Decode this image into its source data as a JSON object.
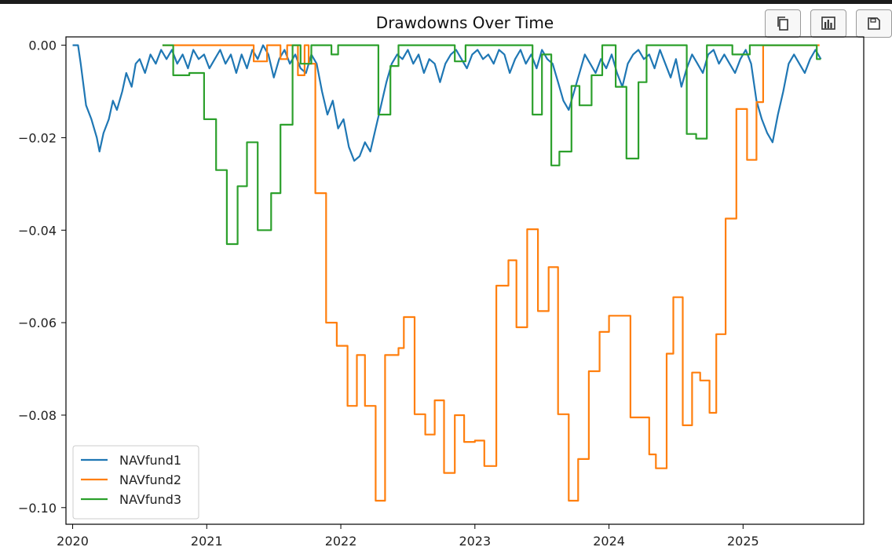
{
  "toolbar": {
    "buttons": [
      {
        "name": "copy-button",
        "icon": "copy-icon"
      },
      {
        "name": "chart-button",
        "icon": "bar-chart-icon"
      },
      {
        "name": "save-button",
        "icon": "save-icon"
      }
    ]
  },
  "chart_data": {
    "type": "line",
    "title": "Drawdowns Over Time",
    "xlabel": "",
    "ylabel": "",
    "xlim": [
      2019.95,
      2025.9
    ],
    "ylim": [
      -0.1036,
      0.0018
    ],
    "x_ticks": [
      2020,
      2021,
      2022,
      2023,
      2024,
      2025
    ],
    "x_tick_labels": [
      "2020",
      "2021",
      "2022",
      "2023",
      "2024",
      "2025"
    ],
    "y_ticks": [
      0.0,
      -0.02,
      -0.04,
      -0.06,
      -0.08,
      -0.1
    ],
    "y_tick_labels": [
      "0.00",
      "−0.02",
      "−0.04",
      "−0.06",
      "−0.08",
      "−0.10"
    ],
    "legend_position": "lower-left",
    "grid": false,
    "series": [
      {
        "name": "NAVfund1",
        "color": "#1f77b4",
        "style": "line",
        "x": [
          2020.0,
          2020.04,
          2020.06,
          2020.1,
          2020.14,
          2020.18,
          2020.2,
          2020.23,
          2020.27,
          2020.3,
          2020.33,
          2020.37,
          2020.4,
          2020.44,
          2020.47,
          2020.5,
          2020.54,
          2020.58,
          2020.62,
          2020.66,
          2020.7,
          2020.74,
          2020.78,
          2020.82,
          2020.86,
          2020.9,
          2020.94,
          2020.98,
          2021.02,
          2021.06,
          2021.1,
          2021.14,
          2021.18,
          2021.22,
          2021.26,
          2021.3,
          2021.34,
          2021.38,
          2021.42,
          2021.46,
          2021.5,
          2021.54,
          2021.58,
          2021.62,
          2021.66,
          2021.7,
          2021.74,
          2021.78,
          2021.82,
          2021.86,
          2021.9,
          2021.94,
          2021.98,
          2022.02,
          2022.06,
          2022.1,
          2022.14,
          2022.18,
          2022.22,
          2022.26,
          2022.3,
          2022.34,
          2022.38,
          2022.42,
          2022.46,
          2022.5,
          2022.54,
          2022.58,
          2022.62,
          2022.66,
          2022.7,
          2022.74,
          2022.78,
          2022.82,
          2022.86,
          2022.9,
          2022.94,
          2022.98,
          2023.02,
          2023.06,
          2023.1,
          2023.14,
          2023.18,
          2023.22,
          2023.26,
          2023.3,
          2023.34,
          2023.38,
          2023.42,
          2023.46,
          2023.5,
          2023.54,
          2023.58,
          2023.62,
          2023.66,
          2023.7,
          2023.74,
          2023.78,
          2023.82,
          2023.86,
          2023.9,
          2023.94,
          2023.98,
          2024.02,
          2024.06,
          2024.1,
          2024.14,
          2024.18,
          2024.22,
          2024.26,
          2024.3,
          2024.34,
          2024.38,
          2024.42,
          2024.46,
          2024.5,
          2024.54,
          2024.58,
          2024.62,
          2024.66,
          2024.7,
          2024.74,
          2024.78,
          2024.82,
          2024.86,
          2024.9,
          2024.94,
          2024.98,
          2025.02,
          2025.06,
          2025.1,
          2025.14,
          2025.18,
          2025.22,
          2025.26,
          2025.3,
          2025.34,
          2025.38,
          2025.42,
          2025.46,
          2025.5,
          2025.54,
          2025.58
        ],
        "y": [
          0.0,
          0.0,
          -0.004,
          -0.013,
          -0.016,
          -0.02,
          -0.023,
          -0.019,
          -0.016,
          -0.012,
          -0.014,
          -0.01,
          -0.006,
          -0.009,
          -0.004,
          -0.003,
          -0.006,
          -0.002,
          -0.004,
          -0.001,
          -0.003,
          -0.001,
          -0.004,
          -0.002,
          -0.005,
          -0.001,
          -0.003,
          -0.002,
          -0.005,
          -0.003,
          -0.001,
          -0.004,
          -0.002,
          -0.006,
          -0.002,
          -0.005,
          -0.001,
          -0.003,
          -0.0,
          -0.002,
          -0.007,
          -0.003,
          -0.001,
          -0.004,
          -0.002,
          -0.005,
          -0.006,
          -0.002,
          -0.004,
          -0.01,
          -0.015,
          -0.012,
          -0.018,
          -0.016,
          -0.022,
          -0.025,
          -0.024,
          -0.021,
          -0.023,
          -0.018,
          -0.013,
          -0.008,
          -0.004,
          -0.002,
          -0.003,
          -0.001,
          -0.004,
          -0.002,
          -0.006,
          -0.003,
          -0.004,
          -0.008,
          -0.004,
          -0.002,
          -0.001,
          -0.003,
          -0.005,
          -0.002,
          -0.001,
          -0.003,
          -0.002,
          -0.004,
          -0.001,
          -0.002,
          -0.006,
          -0.003,
          -0.001,
          -0.004,
          -0.002,
          -0.005,
          -0.001,
          -0.003,
          -0.004,
          -0.008,
          -0.012,
          -0.014,
          -0.01,
          -0.006,
          -0.002,
          -0.004,
          -0.006,
          -0.003,
          -0.005,
          -0.002,
          -0.006,
          -0.009,
          -0.004,
          -0.002,
          -0.001,
          -0.003,
          -0.002,
          -0.005,
          -0.001,
          -0.004,
          -0.007,
          -0.003,
          -0.009,
          -0.005,
          -0.002,
          -0.004,
          -0.006,
          -0.002,
          -0.001,
          -0.004,
          -0.002,
          -0.004,
          -0.006,
          -0.003,
          -0.001,
          -0.004,
          -0.012,
          -0.016,
          -0.019,
          -0.021,
          -0.015,
          -0.01,
          -0.004,
          -0.002,
          -0.004,
          -0.006,
          -0.003,
          -0.001,
          -0.003
        ]
      },
      {
        "name": "NAVfund2",
        "color": "#ff7f0e",
        "style": "step",
        "x": [
          2020.67,
          2021.0,
          2021.25,
          2021.35,
          2021.45,
          2021.55,
          2021.6,
          2021.68,
          2021.73,
          2021.76,
          2021.81,
          2021.89,
          2021.97,
          2022.05,
          2022.12,
          2022.18,
          2022.26,
          2022.33,
          2022.43,
          2022.47,
          2022.55,
          2022.63,
          2022.7,
          2022.77,
          2022.85,
          2022.92,
          2023.0,
          2023.07,
          2023.16,
          2023.25,
          2023.31,
          2023.39,
          2023.47,
          2023.55,
          2023.62,
          2023.7,
          2023.77,
          2023.85,
          2023.93,
          2024.0,
          2024.08,
          2024.16,
          2024.3,
          2024.35,
          2024.43,
          2024.48,
          2024.55,
          2024.62,
          2024.68,
          2024.75,
          2024.8,
          2024.87,
          2024.95,
          2025.03,
          2025.1,
          2025.15,
          2025.21,
          2025.31,
          2025.36,
          2025.52,
          2025.57
        ],
        "y": [
          0.0,
          0.0,
          0.0,
          -0.0035,
          0.0,
          -0.003,
          0.0,
          -0.0065,
          0.0,
          -0.004,
          -0.032,
          -0.06,
          -0.065,
          -0.078,
          -0.067,
          -0.078,
          -0.0985,
          -0.067,
          -0.0655,
          -0.0588,
          -0.0798,
          -0.0842,
          -0.0768,
          -0.0925,
          -0.08,
          -0.0858,
          -0.0855,
          -0.091,
          -0.052,
          -0.0465,
          -0.061,
          -0.0398,
          -0.0575,
          -0.048,
          -0.0798,
          -0.0985,
          -0.0895,
          -0.0705,
          -0.062,
          -0.0585,
          -0.0585,
          -0.0805,
          -0.0885,
          -0.0915,
          -0.0667,
          -0.0545,
          -0.0822,
          -0.0708,
          -0.0725,
          -0.0795,
          -0.0625,
          -0.0375,
          -0.0138,
          -0.0248,
          -0.0123,
          0.0,
          0.0,
          0.0,
          0.0,
          0.0,
          0.0
        ],
        "note_last_x": 2025.57
      },
      {
        "name": "NAVfund3",
        "color": "#2ca02c",
        "style": "step",
        "x": [
          2020.67,
          2020.75,
          2020.87,
          2020.98,
          2021.07,
          2021.15,
          2021.23,
          2021.3,
          2021.38,
          2021.48,
          2021.55,
          2021.64,
          2021.7,
          2021.78,
          2021.93,
          2021.98,
          2022.18,
          2022.28,
          2022.37,
          2022.43,
          2022.55,
          2022.63,
          2022.75,
          2022.85,
          2022.93,
          2023.05,
          2023.16,
          2023.35,
          2023.43,
          2023.5,
          2023.57,
          2023.63,
          2023.72,
          2023.78,
          2023.87,
          2023.95,
          2024.05,
          2024.13,
          2024.22,
          2024.28,
          2024.35,
          2024.45,
          2024.58,
          2024.65,
          2024.73,
          2024.82,
          2024.92,
          2025.05,
          2025.15,
          2025.25,
          2025.35,
          2025.45,
          2025.55,
          2025.58
        ],
        "y": [
          0.0,
          -0.0065,
          -0.006,
          -0.016,
          -0.027,
          -0.043,
          -0.0305,
          -0.021,
          -0.04,
          -0.032,
          -0.0172,
          -0.0,
          -0.004,
          0.0,
          -0.002,
          0.0,
          0.0,
          -0.015,
          -0.0045,
          0.0,
          0.0,
          0.0,
          0.0,
          -0.0035,
          0.0,
          0.0,
          0.0,
          0.0,
          -0.015,
          -0.002,
          -0.026,
          -0.023,
          -0.0088,
          -0.013,
          -0.0065,
          0.0,
          -0.009,
          -0.0245,
          -0.008,
          0.0,
          0.0,
          0.0,
          -0.0192,
          -0.0202,
          0.0,
          0.0,
          -0.002,
          0.0,
          0.0,
          0.0,
          0.0,
          0.0,
          -0.003,
          -0.003
        ]
      }
    ]
  }
}
